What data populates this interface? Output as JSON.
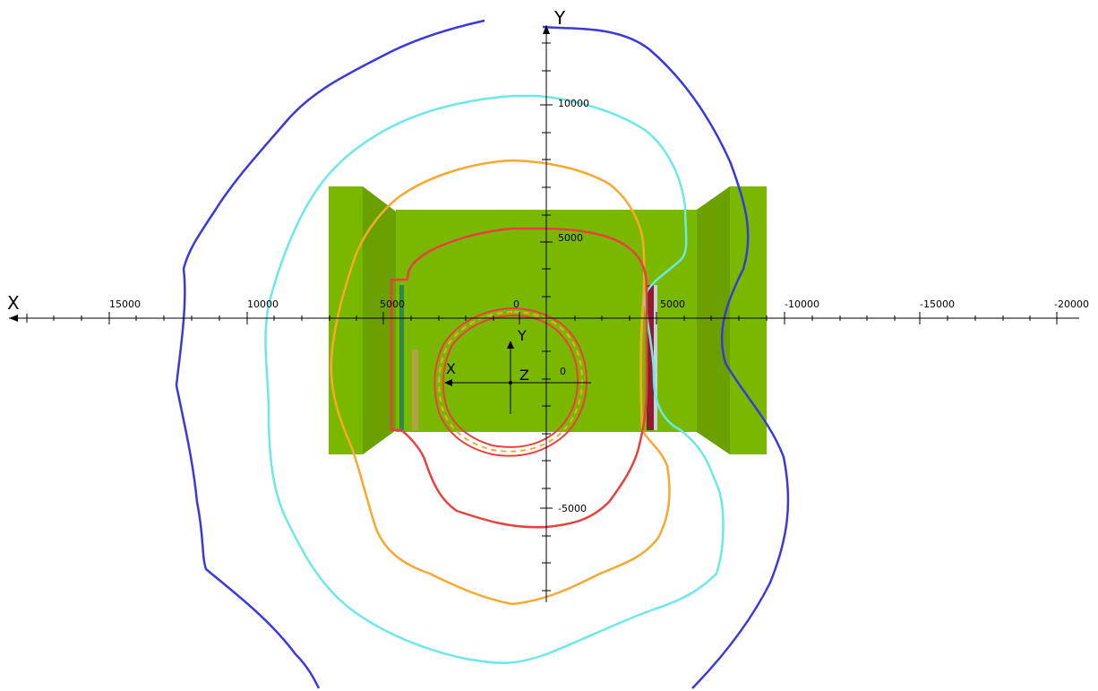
{
  "view": {
    "global_axes": {
      "x_label": "X",
      "y_label": "Y",
      "x_ticks": [
        "15000",
        "10000",
        "5000",
        "0",
        "5000",
        "-10000",
        "-15000",
        "-20000"
      ],
      "y_ticks": [
        "10000",
        "5000",
        "-5000"
      ]
    },
    "local_axes": {
      "x_label": "X",
      "y_label": "Y",
      "z_label": "Z",
      "origin_label": "0"
    }
  },
  "model": {
    "structure_color": "#7ab800",
    "structure_shade_color": "#6aa000"
  },
  "contours": [
    {
      "color": "#3a3adc"
    },
    {
      "color": "#6ce8e8"
    },
    {
      "color": "#f7a830"
    },
    {
      "color": "#e84040"
    }
  ]
}
